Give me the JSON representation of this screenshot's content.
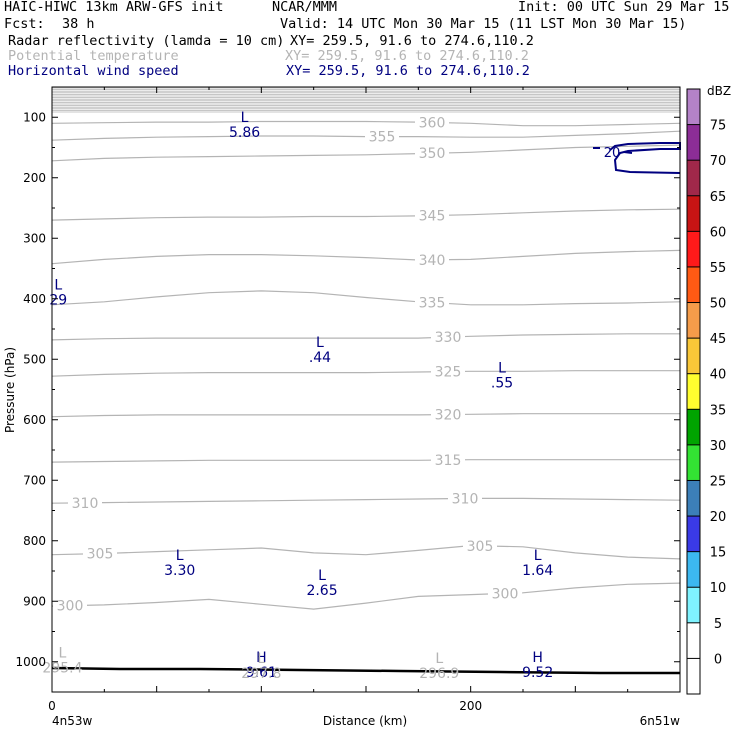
{
  "header": {
    "model": "HAIC-HIWC 13km ARW-GFS init",
    "org": "NCAR/MMM",
    "init": "Init: 00 UTC Sun 29 Mar 15",
    "fcst_label": "Fcst:",
    "fcst_value": "38 h",
    "valid": "Valid: 14 UTC Mon 30 Mar 15 (11 LST Mon 30 Mar 15)",
    "fields": [
      {
        "name": "Radar reflectivity (lamda = 10 cm)",
        "xy": "XY= 259.5, 91.6 to 274.6,110.2",
        "color": "#000000"
      },
      {
        "name": "Potential temperature",
        "xy": "XY= 259.5, 91.6 to 274.6,110.2",
        "color": "#b4b4b4"
      },
      {
        "name": "Horizontal wind speed",
        "xy": "XY= 259.5, 91.6 to 274.6,110.2",
        "color": "#000080"
      }
    ]
  },
  "chart_data": {
    "type": "cross-section contour",
    "ylabel": "Pressure (hPa)",
    "xlabel": "Distance (km)",
    "x_start_label": "4n53w",
    "x_end_label": "6n51w",
    "y_ticks": [
      100,
      200,
      300,
      400,
      500,
      600,
      700,
      800,
      900,
      1000
    ],
    "x_ticks": [
      0,
      200
    ],
    "x_range_km": [
      0,
      300
    ],
    "p_range": [
      50,
      1050
    ],
    "theta_contours": [
      {
        "value": 300,
        "p": [
          908,
          906,
          902,
          897,
          905,
          913,
          903,
          892,
          889,
          886,
          878,
          872,
          870
        ],
        "label_x": [
          70,
          505
        ]
      },
      {
        "value": 305,
        "p": [
          823,
          821,
          818,
          815,
          812,
          820,
          823,
          816,
          808,
          810,
          820,
          827,
          830
        ],
        "label_x": [
          100,
          480
        ]
      },
      {
        "value": 310,
        "p": [
          738,
          737,
          736,
          735,
          734,
          733,
          732,
          731,
          730,
          730,
          731,
          732,
          733
        ],
        "label_x": [
          85,
          465
        ]
      },
      {
        "value": 315,
        "p": [
          670,
          669,
          668,
          667,
          667,
          667,
          667,
          667,
          666,
          666,
          666,
          666,
          666
        ],
        "label_x": [
          448
        ]
      },
      {
        "value": 320,
        "p": [
          595,
          593,
          592,
          592,
          592,
          592,
          592,
          592,
          591,
          590,
          590,
          590,
          590
        ],
        "label_x": [
          448
        ]
      },
      {
        "value": 325,
        "p": [
          528,
          525,
          523,
          522,
          522,
          522,
          522,
          521,
          520,
          520,
          519,
          519,
          519
        ],
        "label_x": [
          448
        ]
      },
      {
        "value": 330,
        "p": [
          468,
          466,
          465,
          465,
          465,
          465,
          465,
          465,
          462,
          460,
          459,
          458,
          458
        ],
        "label_x": [
          448
        ]
      },
      {
        "value": 335,
        "p": [
          410,
          405,
          397,
          390,
          387,
          390,
          398,
          405,
          410,
          410,
          408,
          407,
          405
        ],
        "label_x": [
          432
        ]
      },
      {
        "value": 340,
        "p": [
          342,
          335,
          330,
          327,
          327,
          329,
          332,
          336,
          335,
          330,
          325,
          322,
          320
        ],
        "label_x": [
          432
        ]
      },
      {
        "value": 345,
        "p": [
          270,
          268,
          266,
          265,
          265,
          264,
          264,
          263,
          261,
          258,
          255,
          253,
          252
        ],
        "label_x": [
          432
        ]
      },
      {
        "value": 350,
        "p": [
          172,
          168,
          166,
          165,
          164,
          163,
          162,
          160,
          158,
          154,
          150,
          148,
          146
        ],
        "label_x": [
          432
        ]
      },
      {
        "value": 355,
        "p": [
          138,
          135,
          133,
          132,
          131,
          131,
          132,
          132,
          133,
          133,
          130,
          127,
          123
        ],
        "label_x": [
          382
        ]
      },
      {
        "value": 360,
        "p": [
          110,
          109,
          108,
          108,
          107,
          107,
          107,
          108,
          110,
          114,
          114,
          112,
          110
        ],
        "label_x": [
          432
        ]
      }
    ],
    "wind_labels": [
      {
        "type": "L",
        "value": "5.86",
        "km": 92,
        "p": 108
      },
      {
        "type": "L",
        "value": "29",
        "km": 3,
        "p": 385
      },
      {
        "type": "L",
        "value": ".44",
        "km": 128,
        "p": 480
      },
      {
        "type": "L",
        "value": ".55",
        "km": 215,
        "p": 522
      },
      {
        "type": "L",
        "value": "3.30",
        "km": 61,
        "p": 832
      },
      {
        "type": "L",
        "value": "2.65",
        "km": 129,
        "p": 865
      },
      {
        "type": "L",
        "value": "1.64",
        "km": 232,
        "p": 832
      },
      {
        "type": "H",
        "value": "9.61",
        "km": 100,
        "p": 1000
      },
      {
        "type": "H",
        "value": "9.52",
        "km": 232,
        "p": 1000
      }
    ],
    "theta_extrema": [
      {
        "type": "L",
        "value": "295.4",
        "km": 5,
        "p": 1003
      },
      {
        "type": "L",
        "value": "297.8",
        "km": 100,
        "p": 1012
      },
      {
        "type": "L",
        "value": "296.9",
        "km": 185,
        "p": 1012
      }
    ],
    "wind_contour_label": "20",
    "colorbar": {
      "unit": "dBZ",
      "levels": [
        -5,
        0,
        5,
        10,
        15,
        20,
        25,
        30,
        35,
        40,
        45,
        50,
        55,
        60,
        65,
        70,
        75
      ],
      "tick_labels": [
        "0",
        "5",
        "10",
        "15",
        "20",
        "25",
        "30",
        "35",
        "40",
        "45",
        "50",
        "55",
        "60",
        "65",
        "70",
        "75"
      ],
      "colors": [
        "#ffffff",
        "#ffffff",
        "#7ff3ff",
        "#3cb8f0",
        "#3a3ae6",
        "#3c7fb8",
        "#33e233",
        "#00a400",
        "#fffe2f",
        "#f9c738",
        "#f59c4a",
        "#ff5a14",
        "#ff1a1a",
        "#c81414",
        "#a0284a",
        "#8c2d96",
        "#b482c8"
      ]
    }
  }
}
